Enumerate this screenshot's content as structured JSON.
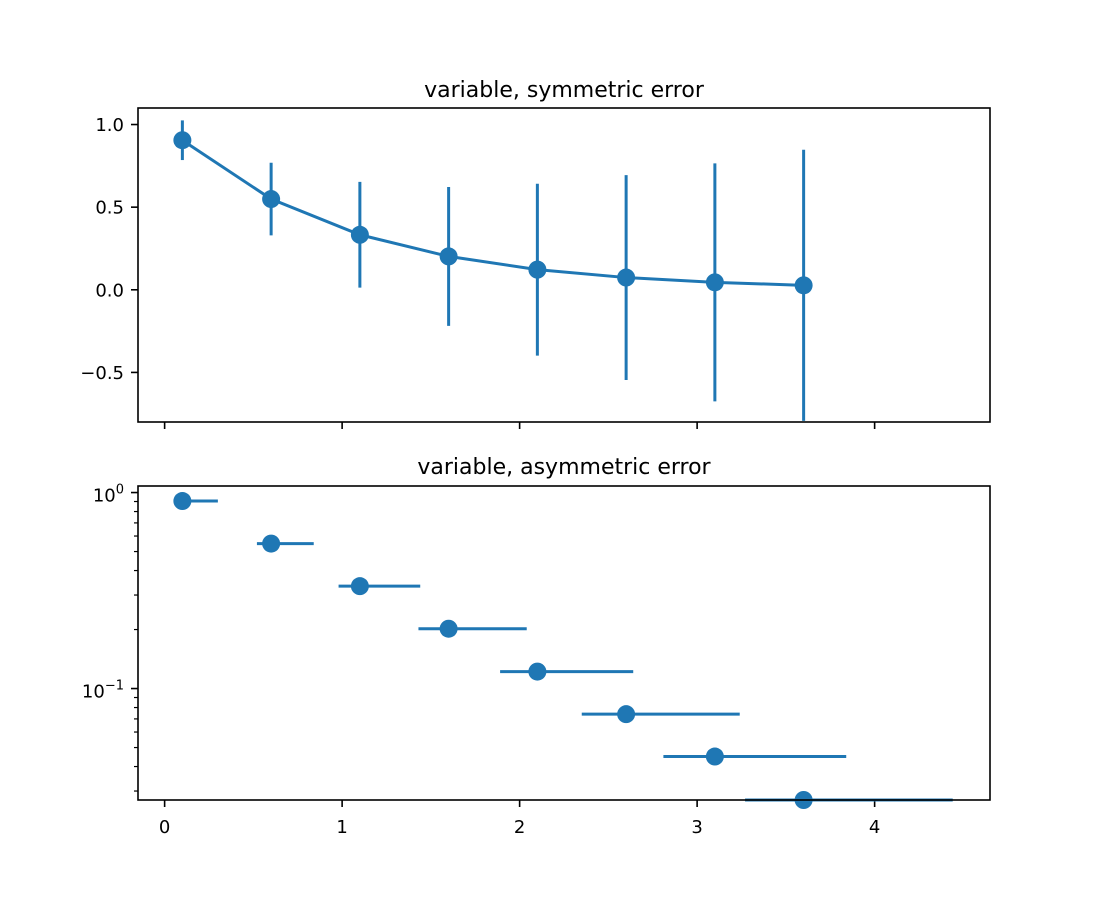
{
  "chart_data": [
    {
      "type": "line",
      "title": "variable, symmetric error",
      "xlabel": "",
      "ylabel": "",
      "xlim": [
        -0.15,
        4.65
      ],
      "ylim": [
        -0.8,
        1.1
      ],
      "y_scale": "linear",
      "x_ticks_labeled": false,
      "x_ticks": [
        0,
        1,
        2,
        3,
        4
      ],
      "y_ticks": [
        {
          "value": 1.0,
          "label": "1.0"
        },
        {
          "value": 0.5,
          "label": "0.5"
        },
        {
          "value": 0.0,
          "label": "0.0"
        },
        {
          "value": -0.5,
          "label": "−0.5"
        }
      ],
      "grid": false,
      "color": "#1f77b4",
      "marker": "circle",
      "x": [
        0.1,
        0.6,
        1.1,
        1.6,
        2.1,
        2.6,
        3.1,
        3.6
      ],
      "y": [
        0.905,
        0.549,
        0.333,
        0.202,
        0.122,
        0.074,
        0.045,
        0.027
      ],
      "yerr": [
        0.12,
        0.22,
        0.32,
        0.42,
        0.52,
        0.62,
        0.72,
        0.82
      ]
    },
    {
      "type": "scatter",
      "title": "variable, asymmetric error",
      "xlabel": "",
      "ylabel": "",
      "xlim": [
        -0.15,
        4.65
      ],
      "ylim": [
        0.027,
        1.08
      ],
      "y_scale": "log",
      "x_ticks": [
        {
          "value": 0,
          "label": "0"
        },
        {
          "value": 1,
          "label": "1"
        },
        {
          "value": 2,
          "label": "2"
        },
        {
          "value": 3,
          "label": "3"
        },
        {
          "value": 4,
          "label": "4"
        }
      ],
      "y_ticks": [
        {
          "value": 1.0,
          "base": "10",
          "exponent": "0"
        },
        {
          "value": 0.1,
          "base": "10",
          "exponent": "−1"
        }
      ],
      "grid": false,
      "color": "#1f77b4",
      "marker": "circle",
      "x": [
        0.1,
        0.6,
        1.1,
        1.6,
        2.1,
        2.6,
        3.1,
        3.6
      ],
      "y": [
        0.905,
        0.549,
        0.333,
        0.202,
        0.122,
        0.074,
        0.045,
        0.027
      ],
      "xerr_lower": [
        0.0,
        0.08,
        0.12,
        0.17,
        0.21,
        0.25,
        0.29,
        0.33
      ],
      "xerr_upper": [
        0.2,
        0.24,
        0.34,
        0.44,
        0.54,
        0.64,
        0.74,
        0.84
      ]
    }
  ]
}
